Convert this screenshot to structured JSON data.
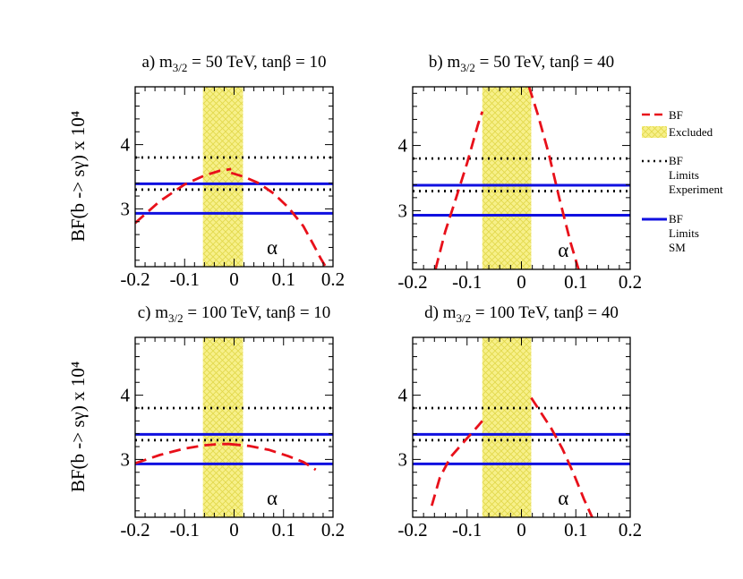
{
  "figure": {
    "ylabel": "BF(b -> sγ) x 10⁴",
    "xlabel": "α"
  },
  "legend": {
    "bf": "BF",
    "excluded": "Excluded",
    "exp_1": "BF",
    "exp_2": "Limits",
    "exp_3": "Experiment",
    "sm_1": "BF",
    "sm_2": "Limits",
    "sm_3": "SM"
  },
  "colors": {
    "bf_curve": "#e8101a",
    "excluded_fill": "#f7f08a",
    "excluded_hatch": "#e8e060",
    "exp_limits": "#000000",
    "sm_limits": "#1010e0"
  },
  "chart_data": [
    {
      "type": "line",
      "panel": "a",
      "title_parts": [
        "a)  m",
        "3/2",
        " = 50 TeV, tanβ = 10"
      ],
      "xlabel": "α",
      "ylabel": "BF(b -> sγ) x 10⁴",
      "xlim": [
        -0.2,
        0.2
      ],
      "ylim": [
        2.1,
        4.9
      ],
      "xticks": [
        "-0.2",
        "-0.1",
        "0",
        "0.1",
        "0.2"
      ],
      "yticks": [
        "3",
        "4"
      ],
      "excluded_range": [
        -0.063,
        0.018
      ],
      "exp_limits": [
        3.3,
        3.8
      ],
      "sm_limits": [
        2.93,
        3.39
      ],
      "series": [
        {
          "name": "BF",
          "segments": [
            {
              "x": [
                -0.2,
                -0.15,
                -0.1,
                -0.06,
                -0.03,
                -0.006
              ],
              "y": [
                2.78,
                3.12,
                3.38,
                3.52,
                3.59,
                3.62
              ]
            },
            {
              "x": [
                -0.006,
                0.02,
                0.05,
                0.08,
                0.11,
                0.14,
                0.16,
                0.175,
                0.185
              ],
              "y": [
                3.56,
                3.5,
                3.4,
                3.24,
                3.02,
                2.73,
                2.45,
                2.23,
                2.1
              ]
            }
          ]
        }
      ]
    },
    {
      "type": "line",
      "panel": "b",
      "title_parts": [
        "b)  m",
        "3/2",
        " = 50 TeV, tanβ = 40"
      ],
      "xlabel": "α",
      "ylabel": "",
      "xlim": [
        -0.2,
        0.2
      ],
      "ylim": [
        2.1,
        4.9
      ],
      "xticks": [
        "-0.2",
        "-0.1",
        "0",
        "0.1",
        "0.2"
      ],
      "yticks": [
        "3",
        "4"
      ],
      "excluded_range": [
        -0.072,
        0.018
      ],
      "exp_limits": [
        3.3,
        3.8
      ],
      "sm_limits": [
        2.93,
        3.39
      ],
      "series": [
        {
          "name": "BF",
          "segments": [
            {
              "x": [
                -0.158,
                -0.14,
                -0.12,
                -0.1,
                -0.08,
                -0.072
              ],
              "y": [
                2.1,
                2.68,
                3.2,
                3.73,
                4.32,
                4.52
              ]
            },
            {
              "x": [
                0.014,
                0.03,
                0.05,
                0.07,
                0.09,
                0.105
              ],
              "y": [
                4.9,
                4.48,
                3.88,
                3.18,
                2.52,
                2.1
              ]
            }
          ]
        }
      ]
    },
    {
      "type": "line",
      "panel": "c",
      "title_parts": [
        "c)  m",
        "3/2",
        " = 100 TeV, tanβ = 10"
      ],
      "xlabel": "α",
      "ylabel": "BF(b -> sγ) x 10⁴",
      "xlim": [
        -0.2,
        0.2
      ],
      "ylim": [
        2.1,
        4.9
      ],
      "xticks": [
        "-0.2",
        "-0.1",
        "0",
        "0.1",
        "0.2"
      ],
      "yticks": [
        "3",
        "4"
      ],
      "excluded_range": [
        -0.063,
        0.018
      ],
      "exp_limits": [
        3.3,
        3.8
      ],
      "sm_limits": [
        2.93,
        3.39
      ],
      "series": [
        {
          "name": "BF",
          "segments": [
            {
              "x": [
                -0.2,
                -0.15,
                -0.1,
                -0.06,
                -0.03,
                -0.01
              ],
              "y": [
                2.94,
                3.07,
                3.17,
                3.22,
                3.24,
                3.24
              ]
            },
            {
              "x": [
                -0.01,
                0.03,
                0.07,
                0.11,
                0.14,
                0.165
              ],
              "y": [
                3.24,
                3.21,
                3.15,
                3.05,
                2.96,
                2.84
              ]
            }
          ]
        }
      ]
    },
    {
      "type": "line",
      "panel": "d",
      "title_parts": [
        "d)  m",
        "3/2",
        " = 100 TeV, tanβ = 40"
      ],
      "xlabel": "α",
      "ylabel": "",
      "xlim": [
        -0.2,
        0.2
      ],
      "ylim": [
        2.1,
        4.9
      ],
      "xticks": [
        "-0.2",
        "-0.1",
        "0",
        "0.1",
        "0.2"
      ],
      "yticks": [
        "3",
        "4"
      ],
      "excluded_range": [
        -0.072,
        0.018
      ],
      "exp_limits": [
        3.3,
        3.8
      ],
      "sm_limits": [
        2.93,
        3.39
      ],
      "series": [
        {
          "name": "BF",
          "segments": [
            {
              "x": [
                -0.165,
                -0.15,
                -0.13,
                -0.1,
                -0.08,
                -0.072
              ],
              "y": [
                2.28,
                2.72,
                3.04,
                3.33,
                3.52,
                3.6
              ]
            },
            {
              "x": [
                0.018,
                0.035,
                0.055,
                0.075,
                0.095,
                0.115,
                0.13
              ],
              "y": [
                3.96,
                3.74,
                3.48,
                3.17,
                2.8,
                2.38,
                2.1
              ]
            }
          ]
        }
      ]
    }
  ]
}
